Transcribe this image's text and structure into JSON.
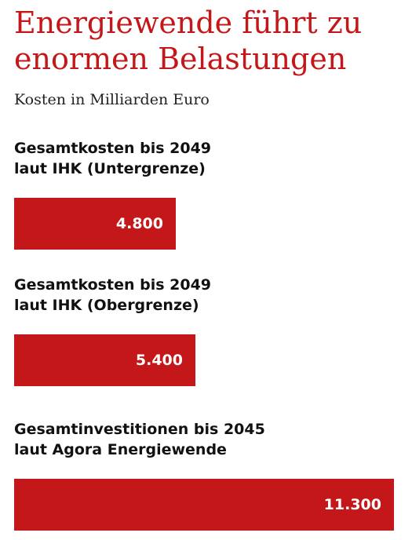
{
  "title": "Energiewende führt zu enormen Belastungen",
  "subtitle": "Kosten in Milliarden Euro",
  "colors": {
    "bar": "#c41719",
    "title": "#c41719"
  },
  "chart_data": {
    "type": "bar",
    "orientation": "horizontal",
    "title": "Energiewende führt zu enormen Belastungen",
    "subtitle": "Kosten in Milliarden Euro",
    "categories": [
      "Gesamtkosten bis 2049 laut IHK (Untergrenze)",
      "Gesamtkosten bis 2049 laut IHK (Obergrenze)",
      "Gesamtinvestitionen bis 2045 laut Agora Energiewende"
    ],
    "category_lines": [
      [
        "Gesamtkosten bis 2049",
        "laut IHK (Untergrenze)"
      ],
      [
        "Gesamtkosten bis 2049",
        "laut IHK (Obergrenze)"
      ],
      [
        "Gesamtinvestitionen bis 2045",
        "laut Agora Energiewende"
      ]
    ],
    "values": [
      4800,
      5400,
      11300
    ],
    "value_labels": [
      "4.800",
      "5.400",
      "11.300"
    ],
    "grid": false
  }
}
